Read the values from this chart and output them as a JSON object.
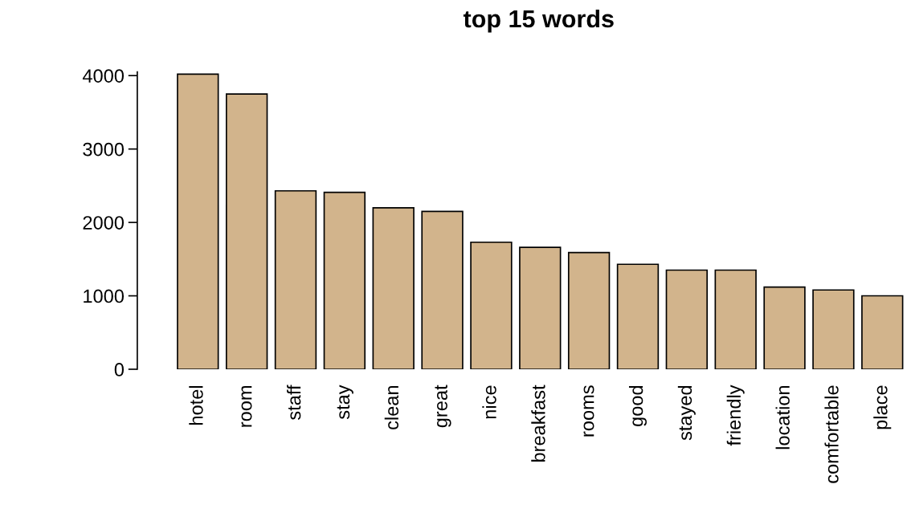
{
  "chart_data": {
    "type": "bar",
    "title": "top 15 words",
    "categories": [
      "hotel",
      "room",
      "staff",
      "stay",
      "clean",
      "great",
      "nice",
      "breakfast",
      "rooms",
      "good",
      "stayed",
      "friendly",
      "location",
      "comfortable",
      "place"
    ],
    "values": [
      4020,
      3750,
      2430,
      2410,
      2200,
      2150,
      1730,
      1660,
      1590,
      1430,
      1350,
      1350,
      1120,
      1080,
      1000
    ],
    "color": "#d2b48c",
    "ylim": [
      0,
      4050
    ],
    "yticks": [
      0,
      1000,
      2000,
      3000,
      4000
    ],
    "grid": false
  }
}
